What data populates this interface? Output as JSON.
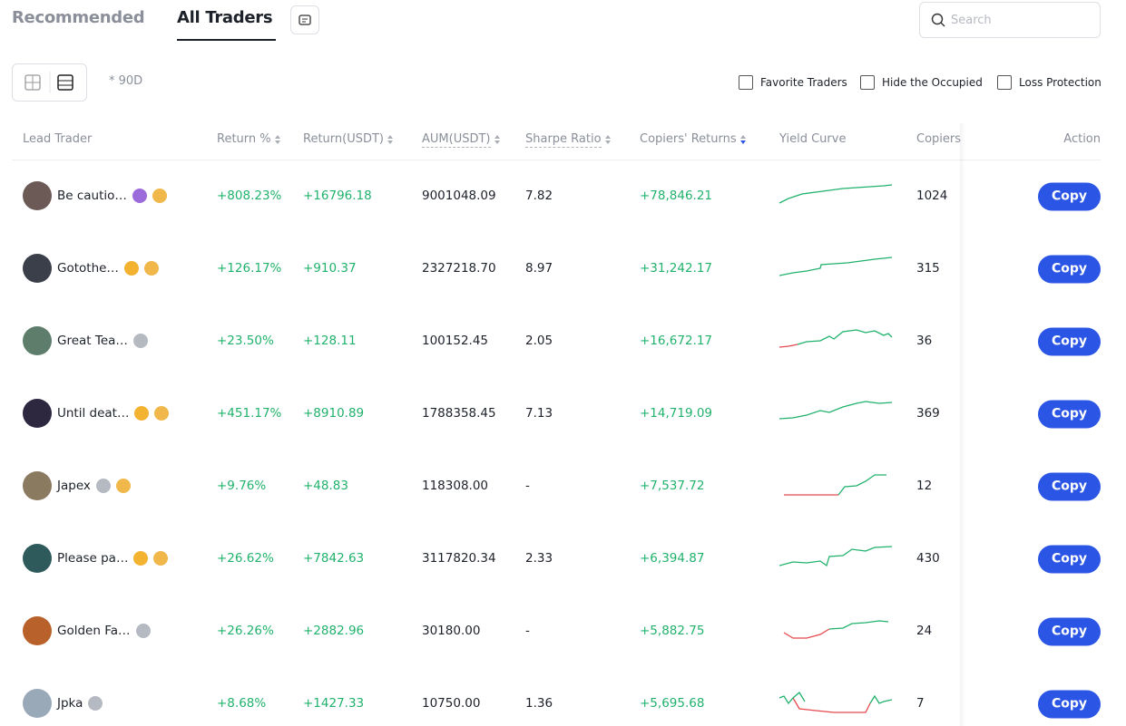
{
  "header": {
    "tabs": [
      "Recommended",
      "All Traders"
    ],
    "search_placeholder": "Search"
  },
  "toolbar": {
    "period": "* 90D",
    "filters": [
      "Favorite Traders",
      "Hide the Occupied",
      "Loss Protection"
    ]
  },
  "table": {
    "columns": [
      "Lead Trader",
      "Return %",
      "Return(USDT)",
      "AUM(USDT)",
      "Sharpe Ratio",
      "Copiers' Returns",
      "Yield Curve",
      "Copiers",
      "Action"
    ],
    "rows": [
      {
        "trader": "Be cautio…",
        "return_pct": "+808.23%",
        "return_usdt": "+16796.18",
        "aum": "9001048.09",
        "sharpe": "7.82",
        "copiers_returns": "+78,846.21",
        "copiers": "1024",
        "action": "Copy"
      },
      {
        "trader": "Gotothe…",
        "return_pct": "+126.17%",
        "return_usdt": "+910.37",
        "aum": "2327218.70",
        "sharpe": "8.97",
        "copiers_returns": "+31,242.17",
        "copiers": "315",
        "action": "Copy"
      },
      {
        "trader": "Great Tea…",
        "return_pct": "+23.50%",
        "return_usdt": "+128.11",
        "aum": "100152.45",
        "sharpe": "2.05",
        "copiers_returns": "+16,672.17",
        "copiers": "36",
        "action": "Copy"
      },
      {
        "trader": "Until deat…",
        "return_pct": "+451.17%",
        "return_usdt": "+8910.89",
        "aum": "1788358.45",
        "sharpe": "7.13",
        "copiers_returns": "+14,719.09",
        "copiers": "369",
        "action": "Copy"
      },
      {
        "trader": "Japex",
        "return_pct": "+9.76%",
        "return_usdt": "+48.83",
        "aum": "118308.00",
        "sharpe": "-",
        "copiers_returns": "+7,537.72",
        "copiers": "12",
        "action": "Copy"
      },
      {
        "trader": "Please pa…",
        "return_pct": "+26.62%",
        "return_usdt": "+7842.63",
        "aum": "3117820.34",
        "sharpe": "2.33",
        "copiers_returns": "+6,394.87",
        "copiers": "430",
        "action": "Copy"
      },
      {
        "trader": "Golden Fa…",
        "return_pct": "+26.26%",
        "return_usdt": "+2882.96",
        "aum": "30180.00",
        "sharpe": "-",
        "copiers_returns": "+5,882.75",
        "copiers": "24",
        "action": "Copy"
      },
      {
        "trader": "Jpka",
        "return_pct": "+8.68%",
        "return_usdt": "+1427.33",
        "aum": "10750.00",
        "sharpe": "1.36",
        "copiers_returns": "+5,695.68",
        "copiers": "7",
        "action": "Copy"
      }
    ]
  }
}
